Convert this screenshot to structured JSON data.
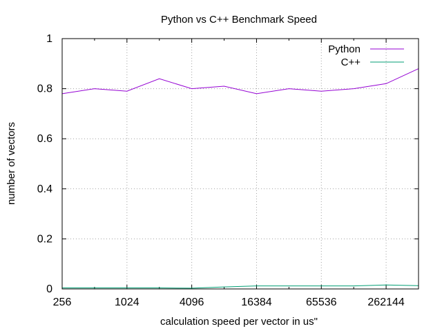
{
  "chart_data": {
    "type": "line",
    "title": "Python vs C++ Benchmark Speed",
    "xlabel": "calculation speed per vector in us\"",
    "ylabel": "number of vectors",
    "x_scale": "log2",
    "xlim": [
      256,
      524288
    ],
    "ylim": [
      0,
      1
    ],
    "grid": true,
    "legend_position": "top-right",
    "x_ticks": [
      256,
      1024,
      4096,
      16384,
      65536,
      262144
    ],
    "x_tick_labels": [
      "256",
      "1024",
      "4096",
      "16384",
      "65536",
      "262144"
    ],
    "y_ticks": [
      0,
      0.2,
      0.4,
      0.6,
      0.8,
      1
    ],
    "y_tick_labels": [
      "0",
      "0.2",
      "0.4",
      "0.6",
      "0.8",
      "1"
    ],
    "x": [
      256,
      512,
      1024,
      2048,
      4096,
      8192,
      16384,
      32768,
      65536,
      131072,
      262144,
      524288
    ],
    "series": [
      {
        "name": "Python",
        "color": "#9400d3",
        "values": [
          0.78,
          0.8,
          0.79,
          0.84,
          0.8,
          0.81,
          0.78,
          0.8,
          0.79,
          0.8,
          0.82,
          0.88
        ]
      },
      {
        "name": "C++",
        "color": "#009e73",
        "values": [
          0.004,
          0.004,
          0.004,
          0.004,
          0.003,
          0.008,
          0.012,
          0.012,
          0.012,
          0.012,
          0.016,
          0.013
        ]
      }
    ]
  }
}
